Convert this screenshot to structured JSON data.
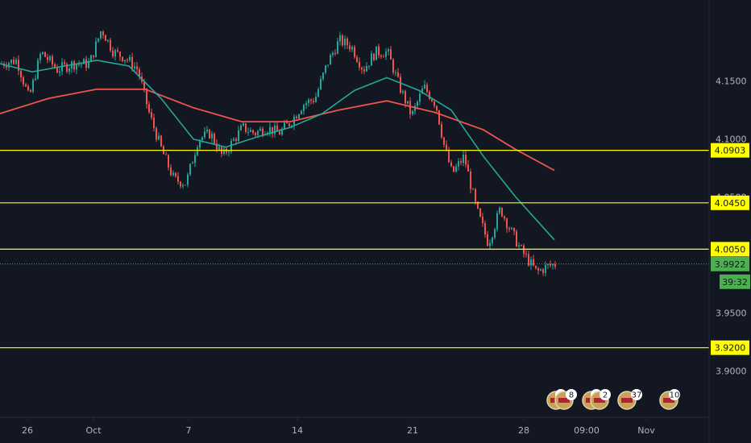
{
  "chart_data": {
    "type": "candlestick",
    "y_axis": {
      "min": 3.86,
      "max": 4.22,
      "ticks": [
        "4.1500",
        "4.1000",
        "4.0500",
        "3.9500",
        "3.9000"
      ],
      "position": "right"
    },
    "x_axis": {
      "ticks": [
        "26",
        "Oct",
        "7",
        "14",
        "21",
        "28",
        "09:00",
        "Nov"
      ]
    },
    "horizontal_levels": [
      {
        "price": 4.0903,
        "label": "4.0903",
        "color": "#ffff00"
      },
      {
        "price": 4.045,
        "label": "4.0450",
        "color": "#ffff00"
      },
      {
        "price": 4.005,
        "label": "4.0050",
        "color": "#ffff00"
      },
      {
        "price": 3.92,
        "label": "3.9200",
        "color": "#ffff00"
      }
    ],
    "last_price": {
      "price": 3.9922,
      "label": "3.9922",
      "countdown": "39:32",
      "color": "#4caf50"
    },
    "ma_fast": {
      "color": "#26a69a",
      "points": [
        [
          0,
          4.165
        ],
        [
          40,
          4.158
        ],
        [
          80,
          4.163
        ],
        [
          120,
          4.168
        ],
        [
          160,
          4.163
        ],
        [
          200,
          4.135
        ],
        [
          240,
          4.1
        ],
        [
          280,
          4.093
        ],
        [
          320,
          4.102
        ],
        [
          360,
          4.11
        ],
        [
          400,
          4.122
        ],
        [
          440,
          4.142
        ],
        [
          480,
          4.153
        ],
        [
          520,
          4.142
        ],
        [
          560,
          4.125
        ],
        [
          600,
          4.085
        ],
        [
          640,
          4.05
        ],
        [
          688,
          4.013
        ]
      ]
    },
    "ma_slow": {
      "color": "#ef5350",
      "points": [
        [
          0,
          4.122
        ],
        [
          60,
          4.135
        ],
        [
          120,
          4.143
        ],
        [
          180,
          4.143
        ],
        [
          240,
          4.127
        ],
        [
          300,
          4.115
        ],
        [
          360,
          4.115
        ],
        [
          420,
          4.125
        ],
        [
          480,
          4.133
        ],
        [
          540,
          4.123
        ],
        [
          600,
          4.108
        ],
        [
          640,
          4.091
        ],
        [
          688,
          4.073
        ]
      ]
    },
    "candles_close_path": [
      [
        0,
        4.165
      ],
      [
        20,
        4.168
      ],
      [
        35,
        4.135
      ],
      [
        50,
        4.175
      ],
      [
        70,
        4.16
      ],
      [
        90,
        4.165
      ],
      [
        110,
        4.165
      ],
      [
        125,
        4.195
      ],
      [
        140,
        4.175
      ],
      [
        155,
        4.17
      ],
      [
        170,
        4.16
      ],
      [
        185,
        4.12
      ],
      [
        200,
        4.09
      ],
      [
        215,
        4.065
      ],
      [
        230,
        4.062
      ],
      [
        245,
        4.1
      ],
      [
        260,
        4.105
      ],
      [
        275,
        4.085
      ],
      [
        290,
        4.1
      ],
      [
        300,
        4.11
      ],
      [
        315,
        4.105
      ],
      [
        330,
        4.11
      ],
      [
        345,
        4.105
      ],
      [
        360,
        4.115
      ],
      [
        375,
        4.13
      ],
      [
        390,
        4.135
      ],
      [
        405,
        4.165
      ],
      [
        420,
        4.185
      ],
      [
        435,
        4.18
      ],
      [
        450,
        4.16
      ],
      [
        465,
        4.175
      ],
      [
        480,
        4.175
      ],
      [
        495,
        4.145
      ],
      [
        510,
        4.12
      ],
      [
        525,
        4.145
      ],
      [
        540,
        4.13
      ],
      [
        550,
        4.095
      ],
      [
        560,
        4.07
      ],
      [
        575,
        4.085
      ],
      [
        590,
        4.04
      ],
      [
        605,
        4.01
      ],
      [
        620,
        4.04
      ],
      [
        630,
        4.025
      ],
      [
        645,
        4.005
      ],
      [
        655,
        3.995
      ],
      [
        665,
        3.985
      ],
      [
        678,
        3.99
      ],
      [
        688,
        3.992
      ]
    ],
    "event_badges": [
      {
        "label": "3"
      },
      {
        "label": "8"
      },
      {
        "label": "5"
      },
      {
        "label": "2"
      },
      {
        "label": "37"
      },
      {
        "label": "10"
      }
    ]
  }
}
